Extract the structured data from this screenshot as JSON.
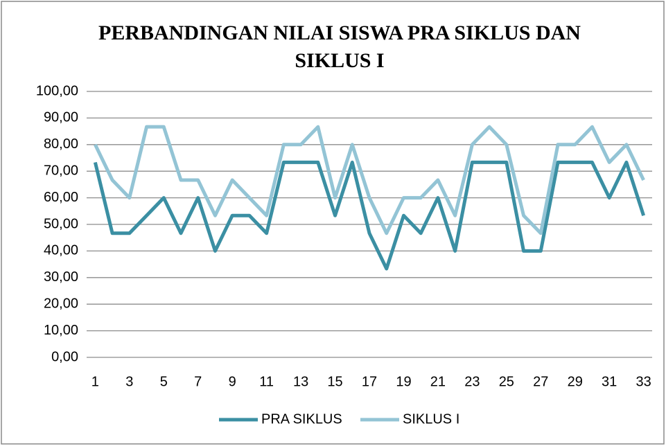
{
  "chart_data": {
    "type": "line",
    "title": "PERBANDINGAN NILAI SISWA PRA SIKLUS DAN SIKLUS I",
    "x": [
      1,
      2,
      3,
      4,
      5,
      6,
      7,
      8,
      9,
      10,
      11,
      12,
      13,
      14,
      15,
      16,
      17,
      18,
      19,
      20,
      21,
      22,
      23,
      24,
      25,
      26,
      27,
      28,
      29,
      30,
      31,
      32,
      33
    ],
    "xlim": [
      0.5,
      33.5
    ],
    "xticks": [
      1,
      3,
      5,
      7,
      9,
      11,
      13,
      15,
      17,
      19,
      21,
      23,
      25,
      27,
      29,
      31,
      33
    ],
    "ylim": [
      0,
      100
    ],
    "yticks": [
      {
        "value": 0,
        "label": "0,00"
      },
      {
        "value": 10,
        "label": "10,00"
      },
      {
        "value": 20,
        "label": "20,00"
      },
      {
        "value": 30,
        "label": "30,00"
      },
      {
        "value": 40,
        "label": "40,00"
      },
      {
        "value": 50,
        "label": "50,00"
      },
      {
        "value": 60,
        "label": "60,00"
      },
      {
        "value": 70,
        "label": "70,00"
      },
      {
        "value": 80,
        "label": "80,00"
      },
      {
        "value": 90,
        "label": "90,00"
      },
      {
        "value": 100,
        "label": "100,00"
      }
    ],
    "grid": true,
    "legend": "bottom",
    "series": [
      {
        "name": "PRA SIKLUS",
        "color": "#3b8fa3",
        "values": [
          73.33,
          46.67,
          46.67,
          53.33,
          60,
          46.67,
          60,
          40,
          53.33,
          53.33,
          46.67,
          73.33,
          73.33,
          73.33,
          53.33,
          73.33,
          46.67,
          33.33,
          53.33,
          46.67,
          60,
          40,
          73.33,
          73.33,
          73.33,
          40,
          40,
          73.33,
          73.33,
          73.33,
          60,
          73.33,
          53.33
        ]
      },
      {
        "name": "SIKLUS I",
        "color": "#93c4d5",
        "values": [
          80,
          66.67,
          60,
          86.67,
          86.67,
          66.67,
          66.67,
          53.33,
          66.67,
          60,
          53.33,
          80,
          80,
          86.67,
          60,
          80,
          60,
          46.67,
          60,
          60,
          66.67,
          53.33,
          80,
          86.67,
          80,
          53.33,
          46.67,
          80,
          80,
          86.67,
          73.33,
          80,
          66.67
        ]
      }
    ]
  }
}
